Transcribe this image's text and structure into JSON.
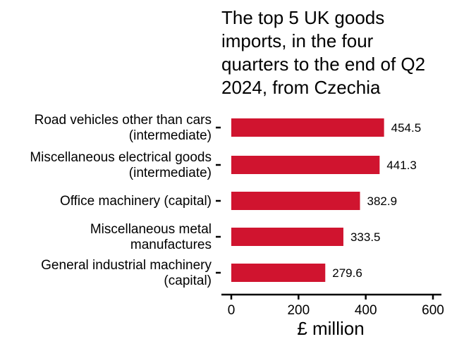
{
  "chart_data": {
    "type": "bar",
    "orientation": "horizontal",
    "title_lines": [
      "The top 5 UK goods",
      "imports, in the four",
      "quarters to the end of Q2",
      "2024, from Czechia"
    ],
    "categories": [
      [
        "Road vehicles other than cars",
        "(intermediate)"
      ],
      [
        "Miscellaneous electrical goods",
        "(intermediate)"
      ],
      [
        "Office machinery (capital)"
      ],
      [
        "Miscellaneous metal",
        "manufactures"
      ],
      [
        "General industrial machinery",
        "(capital)"
      ]
    ],
    "values": [
      454.5,
      441.3,
      382.9,
      333.5,
      279.6
    ],
    "value_labels": [
      "454.5",
      "441.3",
      "382.9",
      "333.5",
      "279.6"
    ],
    "xlabel": "£ million",
    "ylabel": "",
    "xlim": [
      0,
      600
    ],
    "x_ticks": [
      0,
      200,
      400,
      600
    ],
    "grid": false,
    "legend": "none",
    "bar_color": "#d0142f"
  }
}
